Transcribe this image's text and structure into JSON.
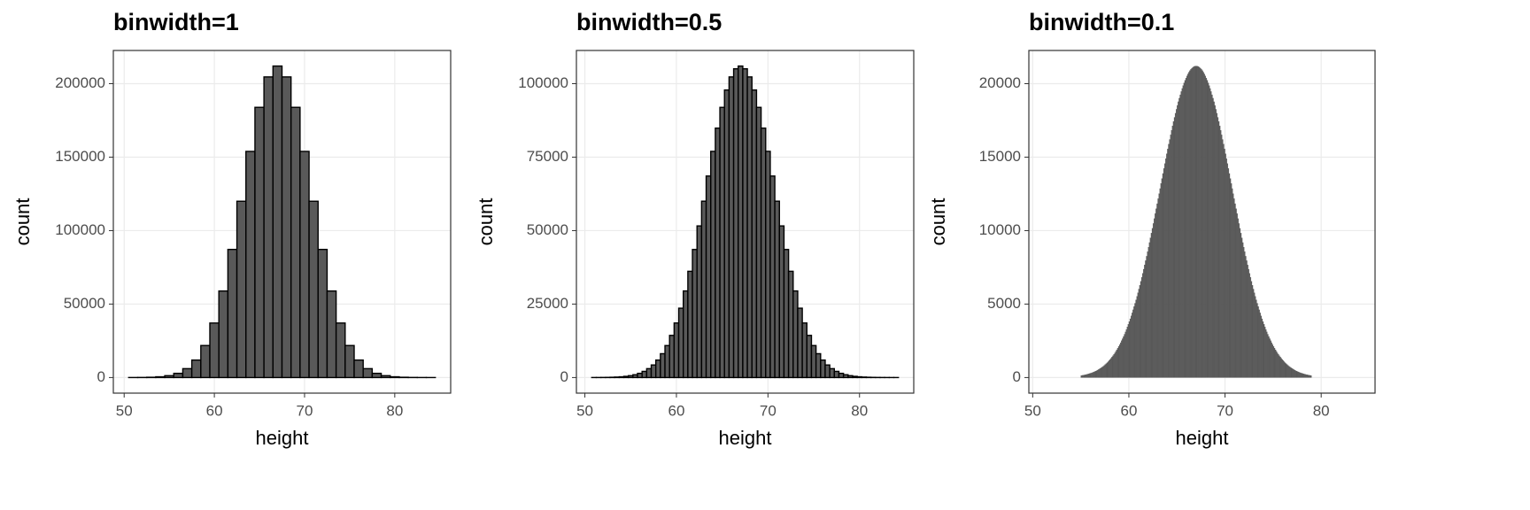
{
  "chart_data": [
    {
      "type": "histogram",
      "title": "binwidth=1",
      "x_label": "height",
      "y_label": "count",
      "bins": [
        50.5,
        51.5,
        52.5,
        53.5,
        54.5,
        55.5,
        56.5,
        57.5,
        58.5,
        59.5,
        60.5,
        61.5,
        62.5,
        63.5,
        64.5,
        65.5,
        66.5,
        67.5,
        68.5,
        69.5,
        70.5,
        71.5,
        72.5,
        73.5,
        74.5,
        75.5,
        76.5,
        77.5,
        78.5,
        79.5,
        80.5,
        81.5,
        82.5,
        83.5,
        84.5
      ],
      "values": [
        24,
        71,
        200,
        521,
        1270,
        2870,
        6060,
        11900,
        21800,
        37100,
        58900,
        87200,
        120000,
        153900,
        183900,
        204600,
        212000,
        204600,
        183900,
        153900,
        120000,
        87200,
        58900,
        37100,
        21800,
        11900,
        6060,
        2870,
        1270,
        521,
        200,
        71,
        24,
        7
      ],
      "color": "#595959",
      "edgecolor": "#000000",
      "xlim": [
        48.8,
        86.2
      ],
      "ylim": [
        -10600,
        222600
      ],
      "xticks": [
        50,
        60,
        70,
        80
      ],
      "yticks": [
        0,
        50000,
        100000,
        150000,
        200000
      ],
      "grid": true
    },
    {
      "type": "histogram",
      "title": "binwidth=0.5",
      "x_label": "height",
      "y_label": "count",
      "bins": [
        50.75,
        51.25,
        51.75,
        52.25,
        52.75,
        53.25,
        53.75,
        54.25,
        54.75,
        55.25,
        55.75,
        56.25,
        56.75,
        57.25,
        57.75,
        58.25,
        58.75,
        59.25,
        59.75,
        60.25,
        60.75,
        61.25,
        61.75,
        62.25,
        62.75,
        63.25,
        63.75,
        64.25,
        64.75,
        65.25,
        65.75,
        66.25,
        66.75,
        67.25,
        67.75,
        68.25,
        68.75,
        69.25,
        69.75,
        70.25,
        70.75,
        71.25,
        71.75,
        72.25,
        72.75,
        73.25,
        73.75,
        74.25,
        74.75,
        75.25,
        75.75,
        76.25,
        76.75,
        77.25,
        77.75,
        78.25,
        78.75,
        79.25,
        79.75,
        80.25,
        80.75,
        81.25,
        81.75,
        82.25,
        82.75,
        83.25,
        83.75,
        84.25
      ],
      "values": [
        12,
        21,
        36,
        60,
        100,
        162,
        260,
        410,
        634,
        961,
        1435,
        2100,
        3030,
        4280,
        5950,
        8120,
        10890,
        14350,
        18560,
        23600,
        29470,
        36160,
        43580,
        51600,
        60020,
        68570,
        76970,
        84870,
        91940,
        97850,
        102300,
        105060,
        106000,
        105060,
        102300,
        97850,
        91940,
        84870,
        76970,
        68570,
        60020,
        51600,
        43580,
        36160,
        29470,
        23600,
        18560,
        14350,
        10890,
        8120,
        5950,
        4280,
        3030,
        2100,
        1435,
        961,
        634,
        410,
        260,
        162,
        100,
        60,
        36,
        21,
        12,
        6,
        4
      ],
      "color": "#595959",
      "edgecolor": "#000000",
      "xlim": [
        49.075,
        85.925
      ],
      "ylim": [
        -5300,
        111300
      ],
      "xticks": [
        50,
        60,
        70,
        80
      ],
      "yticks": [
        0,
        25000,
        50000,
        75000,
        100000
      ],
      "grid": true
    },
    {
      "type": "histogram",
      "title": "binwidth=0.1",
      "x_label": "height",
      "y_label": "count",
      "bins": [
        55,
        55.1,
        55.2,
        55.3,
        55.4,
        55.5,
        55.6,
        55.7,
        55.8,
        55.9,
        56,
        56.1,
        56.2,
        56.3,
        56.4,
        56.5,
        56.6,
        56.7,
        56.8,
        56.9,
        57,
        57.1,
        57.2,
        57.3,
        57.4,
        57.5,
        57.6,
        57.7,
        57.8,
        57.9,
        58,
        58.1,
        58.2,
        58.3,
        58.4,
        58.5,
        58.6,
        58.7,
        58.8,
        58.9,
        59,
        59.1,
        59.2,
        59.3,
        59.4,
        59.5,
        59.6,
        59.7,
        59.8,
        59.9,
        60,
        60.1,
        60.2,
        60.3,
        60.4,
        60.5,
        60.6,
        60.7,
        60.8,
        60.9,
        61,
        61.1,
        61.2,
        61.3,
        61.4,
        61.5,
        61.6,
        61.7,
        61.8,
        61.9,
        62,
        62.1,
        62.2,
        62.3,
        62.4,
        62.5,
        62.6,
        62.7,
        62.8,
        62.9,
        63,
        63.1,
        63.2,
        63.3,
        63.4,
        63.5,
        63.6,
        63.7,
        63.8,
        63.9,
        64,
        64.1,
        64.2,
        64.3,
        64.4,
        64.5,
        64.6,
        64.7,
        64.8,
        64.9,
        65,
        65.1,
        65.2,
        65.3,
        65.4,
        65.5,
        65.6,
        65.7,
        65.8,
        65.9,
        66,
        66.1,
        66.2,
        66.3,
        66.4,
        66.5,
        66.6,
        66.7,
        66.8,
        66.9,
        67,
        67.1,
        67.2,
        67.3,
        67.4,
        67.5,
        67.6,
        67.7,
        67.8,
        67.9,
        68,
        68.1,
        68.2,
        68.3,
        68.4,
        68.5,
        68.6,
        68.7,
        68.8,
        68.9,
        69,
        69.1,
        69.2,
        69.3,
        69.4,
        69.5,
        69.6,
        69.7,
        69.8,
        69.9,
        70,
        70.1,
        70.2,
        70.3,
        70.4,
        70.5,
        70.6,
        70.7,
        70.8,
        70.9,
        71,
        71.1,
        71.2,
        71.3,
        71.4,
        71.5,
        71.6,
        71.7,
        71.8,
        71.9,
        72,
        72.1,
        72.2,
        72.3,
        72.4,
        72.5,
        72.6,
        72.7,
        72.8,
        72.9,
        73,
        73.1,
        73.2,
        73.3,
        73.4,
        73.5,
        73.6,
        73.7,
        73.8,
        73.9,
        74,
        74.1,
        74.2,
        74.3,
        74.4,
        74.5,
        74.6,
        74.7,
        74.8,
        74.9,
        75,
        75.1,
        75.2,
        75.3,
        75.4,
        75.5,
        75.6,
        75.7,
        75.8,
        75.9,
        76,
        76.1,
        76.2,
        76.3,
        76.4,
        76.5,
        76.6,
        76.7,
        76.8,
        76.9,
        77,
        77.1,
        77.2,
        77.3,
        77.4,
        77.5,
        77.6,
        77.7,
        77.8,
        77.9,
        78,
        78.1,
        78.2,
        78.3,
        78.4,
        78.5,
        78.6,
        78.7,
        78.8,
        78.9,
        79
      ],
      "values": [
        132,
        144,
        157,
        170,
        185,
        200,
        217,
        235,
        255,
        276,
        298,
        322,
        348,
        376,
        405,
        437,
        470,
        506,
        544,
        584,
        627,
        673,
        722,
        773,
        828,
        886,
        947,
        1012,
        1080,
        1152,
        1229,
        1309,
        1393,
        1482,
        1576,
        1674,
        1777,
        1885,
        1998,
        2116,
        2240,
        2370,
        2505,
        2646,
        2793,
        2946,
        3106,
        3271,
        3443,
        3622,
        3807,
        3998,
        4196,
        4401,
        4612,
        4830,
        5055,
        5287,
        5525,
        5770,
        6021,
        6279,
        6544,
        6814,
        7091,
        7374,
        7663,
        7957,
        8257,
        8562,
        8872,
        9186,
        9505,
        9828,
        10155,
        10485,
        10818,
        11154,
        11492,
        11832,
        12173,
        12516,
        12859,
        13202,
        13544,
        13885,
        14225,
        14563,
        14898,
        15230,
        15558,
        15882,
        16202,
        16516,
        16824,
        17126,
        17420,
        17708,
        17987,
        18257,
        18519,
        18771,
        19012,
        19244,
        19464,
        19673,
        19870,
        20054,
        20226,
        20385,
        20531,
        20662,
        20780,
        20884,
        20973,
        21048,
        21108,
        21153,
        21183,
        21198,
        21198,
        21183,
        21153,
        21108,
        21048,
        20973,
        20884,
        20780,
        20662,
        20531,
        20385,
        20226,
        20054,
        19870,
        19673,
        19464,
        19244,
        19012,
        18771,
        18519,
        18257,
        17987,
        17708,
        17420,
        17126,
        16824,
        16516,
        16202,
        15882,
        15558,
        15230,
        14898,
        14563,
        14225,
        13885,
        13544,
        13202,
        12859,
        12516,
        12173,
        11832,
        11492,
        11154,
        10818,
        10485,
        10155,
        9828,
        9505,
        9186,
        8872,
        8562,
        8257,
        7957,
        7663,
        7374,
        7091,
        6814,
        6544,
        6279,
        6021,
        5770,
        5525,
        5287,
        5055,
        4830,
        4612,
        4401,
        4196,
        3998,
        3807,
        3622,
        3443,
        3271,
        3106,
        2946,
        2793,
        2646,
        2505,
        2370,
        2240,
        2116,
        1998,
        1885,
        1777,
        1674,
        1576,
        1482,
        1393,
        1309,
        1229,
        1152,
        1080,
        1012,
        947,
        886,
        828,
        773,
        722,
        673,
        627,
        584,
        544,
        506,
        470,
        437,
        405,
        376,
        348,
        322,
        298,
        276,
        255,
        235,
        217,
        200,
        185,
        170,
        157,
        144,
        132
      ],
      "color": "#595959",
      "xlim": [
        49.6,
        85.6
      ],
      "ylim": [
        -1060,
        22260
      ],
      "xticks": [
        50,
        60,
        70,
        80
      ],
      "yticks": [
        0,
        5000,
        10000,
        15000,
        20000
      ],
      "grid": true
    }
  ]
}
